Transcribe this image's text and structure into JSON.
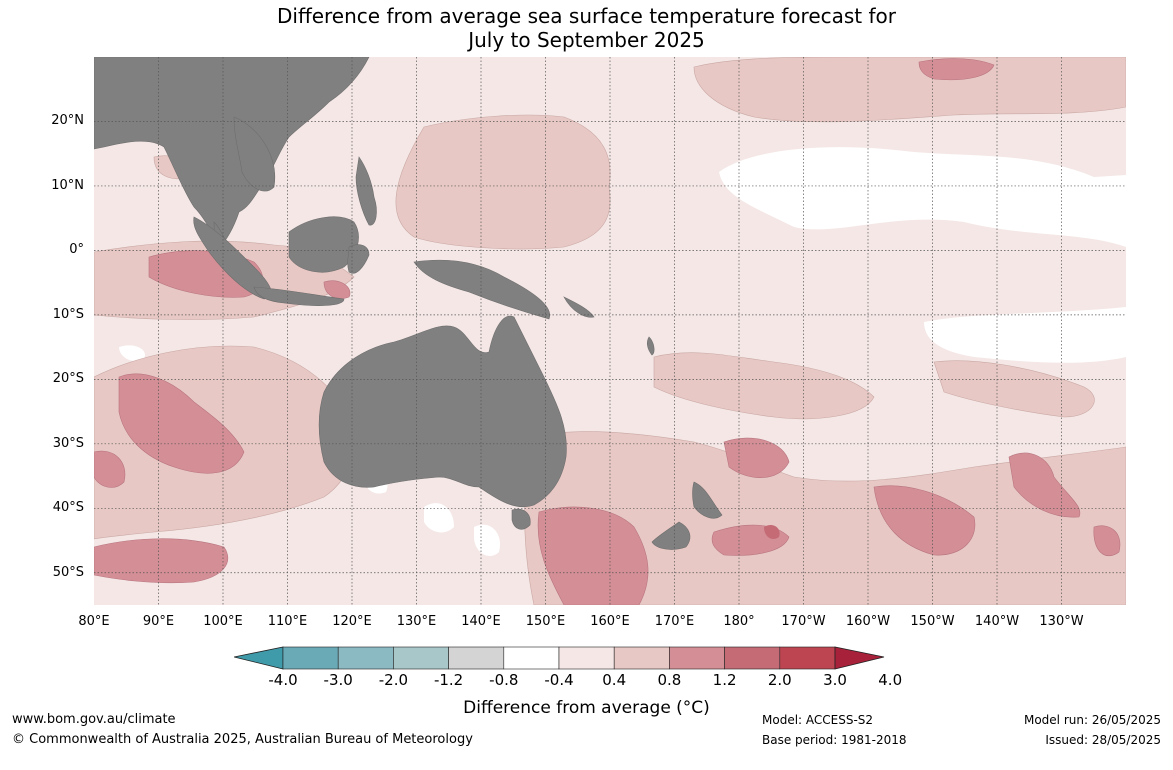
{
  "title_line1": "Difference from average sea surface temperature forecast for",
  "title_line2": "July to September 2025",
  "map": {
    "lon_range": [
      80,
      240
    ],
    "lat_range": [
      -55,
      30
    ],
    "land_color": "#808080",
    "lat_labels": [
      "20°N",
      "10°N",
      "0°",
      "10°S",
      "20°S",
      "30°S",
      "40°S",
      "50°S"
    ],
    "lat_values": [
      20,
      10,
      0,
      -10,
      -20,
      -30,
      -40,
      -50
    ],
    "lon_labels": [
      "80°E",
      "90°E",
      "100°E",
      "110°E",
      "120°E",
      "130°E",
      "140°E",
      "150°E",
      "160°E",
      "170°E",
      "180°",
      "170°W",
      "160°W",
      "150°W",
      "140°W",
      "130°W"
    ],
    "lon_values": [
      80,
      90,
      100,
      110,
      120,
      130,
      140,
      150,
      160,
      170,
      180,
      190,
      200,
      210,
      220,
      230
    ]
  },
  "colorbar": {
    "labels": [
      "-4.0",
      "-3.0",
      "-2.0",
      "-1.2",
      "-0.8",
      "-0.4",
      "0.4",
      "0.8",
      "1.2",
      "2.0",
      "3.0",
      "4.0"
    ],
    "colors": [
      "#3f9aaa",
      "#6aaab7",
      "#8bbac2",
      "#a8c7c9",
      "#d4d4d4",
      "#ffffff",
      "#f4e7e6",
      "#e8c8c4",
      "#d48e95",
      "#c46b76",
      "#bd4551",
      "#a8213a"
    ],
    "title": "Difference from average (°C)"
  },
  "footer": {
    "url": "www.bom.gov.au/climate",
    "copyright": "© Commonwealth of Australia 2025, Australian Bureau of Meteorology",
    "model": "Model: ACCESS-S2",
    "base_period": "Base period: 1981-2018",
    "model_run": "Model run: 26/05/2025",
    "issued": "Issued: 28/05/2025"
  }
}
